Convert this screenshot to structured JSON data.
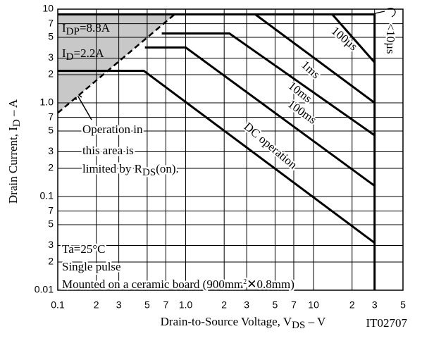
{
  "chart_data": {
    "type": "line",
    "x_label": [
      {
        "text": "Drain-to-Source Voltage, V"
      },
      {
        "text": "DS",
        "shift": "sub"
      },
      {
        "text": " – V"
      }
    ],
    "y_label": [
      {
        "text": "Drain Current, I"
      },
      {
        "text": "D",
        "shift": "sub"
      },
      {
        "text": " – A"
      }
    ],
    "code": "IT02707",
    "xlog": true,
    "ylog": true,
    "grid": true,
    "color": "#000000",
    "shade": "#c8c8c8",
    "xlim": [
      0.1,
      50
    ],
    "ylim": [
      0.01,
      10
    ],
    "xticks": [
      0.1,
      {
        "value": 0.2,
        "label": "2"
      },
      {
        "value": 0.3,
        "label": "3"
      },
      {
        "value": 0.5,
        "label": "5"
      },
      {
        "value": 0.7,
        "label": "7"
      },
      {
        "value": 1,
        "label": "1.0"
      },
      2,
      3,
      5,
      7,
      10,
      {
        "value": 20,
        "label": "2"
      },
      {
        "value": 30,
        "label": "3"
      },
      {
        "value": 50,
        "label": "5"
      }
    ],
    "yticks": [
      0.01,
      {
        "value": 0.02,
        "label": "2"
      },
      {
        "value": 0.03,
        "label": "3"
      },
      {
        "value": 0.05,
        "label": "5"
      },
      {
        "value": 0.07,
        "label": "7"
      },
      0.1,
      {
        "value": 0.2,
        "label": "2"
      },
      {
        "value": 0.3,
        "label": "3"
      },
      {
        "value": 0.5,
        "label": "5"
      },
      {
        "value": 0.7,
        "label": "7"
      },
      {
        "value": 1,
        "label": "1.0"
      },
      2,
      3,
      5,
      7,
      10
    ],
    "series": [
      {
        "x": [
          0.1,
          30,
          30
        ],
        "values": [
          8.8,
          8.8,
          0.01
        ]
      },
      {
        "name": "100µs",
        "x": [
          14,
          30
        ],
        "values": [
          8.8,
          2.7
        ]
      },
      {
        "name": "1ms",
        "x": [
          3.5,
          30
        ],
        "values": [
          8.8,
          1.0
        ]
      },
      {
        "name": "10ms",
        "x": [
          0.65,
          2.2,
          30
        ],
        "values": [
          5.5,
          5.5,
          0.45
        ]
      },
      {
        "name": "100ms",
        "x": [
          0.48,
          1.0,
          30
        ],
        "values": [
          3.9,
          3.9,
          0.13
        ]
      },
      {
        "name": "DC operation",
        "x": [
          0.1,
          0.47,
          30
        ],
        "values": [
          2.2,
          2.2,
          0.032
        ]
      },
      {
        "x": [
          0.1,
          0.82
        ],
        "values": [
          0.78,
          8.8
        ],
        "dash": true
      }
    ],
    "pulse_note": "<10µs",
    "annotations": [
      [
        {
          "text": "I"
        },
        {
          "text": "DP",
          "shift": "sub"
        },
        {
          "text": "=8.8A"
        }
      ],
      [
        {
          "text": "I"
        },
        {
          "text": "D",
          "shift": "sub"
        },
        {
          "text": "=2.2A"
        }
      ],
      [
        {
          "text": "Operation in"
        }
      ],
      [
        {
          "text": "this area is"
        }
      ],
      [
        {
          "text": "limited by R"
        },
        {
          "text": "DS",
          "shift": "sub"
        },
        {
          "text": "(on)."
        }
      ],
      [
        {
          "text": "Ta=25°C"
        }
      ],
      [
        {
          "text": "Single pulse"
        }
      ],
      [
        {
          "text": "Mounted on a ceramic board (900mm"
        },
        {
          "text": "2",
          "shift": "sup"
        },
        {
          "text": "✕0.8mm)"
        }
      ]
    ]
  }
}
